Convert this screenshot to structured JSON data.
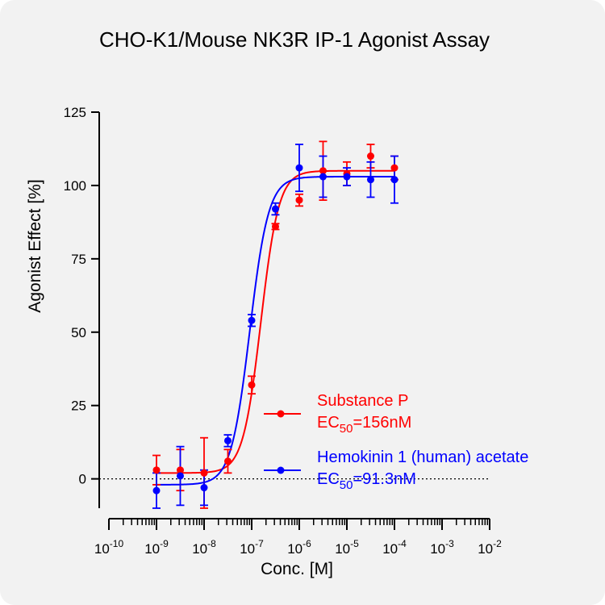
{
  "chart_data": {
    "type": "scatter",
    "title": "CHO-K1/Mouse NK3R IP-1 Agonist Assay",
    "xlabel": "Conc. [M]",
    "ylabel": "Agonist Effect [%]",
    "x_scale": "log10",
    "x_range": [
      1e-10,
      0.01
    ],
    "x_tick_labels": [
      {
        "base": "10",
        "exp": "-10"
      },
      {
        "base": "10",
        "exp": "-9"
      },
      {
        "base": "10",
        "exp": "-8"
      },
      {
        "base": "10",
        "exp": "-7"
      },
      {
        "base": "10",
        "exp": "-6"
      },
      {
        "base": "10",
        "exp": "-5"
      },
      {
        "base": "10",
        "exp": "-4"
      },
      {
        "base": "10",
        "exp": "-3"
      },
      {
        "base": "10",
        "exp": "-2"
      }
    ],
    "y_range": [
      -10,
      125
    ],
    "y_ticks": [
      0,
      25,
      50,
      75,
      100,
      125
    ],
    "zero_line": "dotted",
    "grid": false,
    "legend_position": "lower-right",
    "series": [
      {
        "name": "Substance P",
        "ec50_label": {
          "prefix": "EC",
          "sub": "50",
          "suffix": "=156nM"
        },
        "color": "#ff0000",
        "points": [
          {
            "x": 1e-09,
            "y": 3,
            "err": 5
          },
          {
            "x": 3.16e-09,
            "y": 3,
            "err": 7
          },
          {
            "x": 1e-08,
            "y": 2,
            "err": 12
          },
          {
            "x": 3.16e-08,
            "y": 6,
            "err": 4
          },
          {
            "x": 1e-07,
            "y": 32,
            "err": 3
          },
          {
            "x": 3.16e-07,
            "y": 86,
            "err": 1
          },
          {
            "x": 1e-06,
            "y": 95,
            "err": 2
          },
          {
            "x": 3.16e-06,
            "y": 105,
            "err": 10
          },
          {
            "x": 1e-05,
            "y": 104,
            "err": 4
          },
          {
            "x": 3.16e-05,
            "y": 110,
            "err": 4
          },
          {
            "x": 0.0001,
            "y": 106,
            "err": 4
          }
        ],
        "fit": {
          "bottom": 2,
          "top": 105,
          "ec50": 1.56e-07,
          "hill": 2.3
        }
      },
      {
        "name": "Hemokinin 1 (human) acetate",
        "ec50_label": {
          "prefix": "EC",
          "sub": "50",
          "suffix": "=91.3nM"
        },
        "color": "#0000ff",
        "points": [
          {
            "x": 1e-09,
            "y": -4,
            "err": 6
          },
          {
            "x": 3.16e-09,
            "y": 1,
            "err": 10
          },
          {
            "x": 1e-08,
            "y": -3,
            "err": 6
          },
          {
            "x": 3.16e-08,
            "y": 13,
            "err": 2
          },
          {
            "x": 1e-07,
            "y": 54,
            "err": 2
          },
          {
            "x": 3.16e-07,
            "y": 92,
            "err": 2
          },
          {
            "x": 1e-06,
            "y": 106,
            "err": 8
          },
          {
            "x": 3.16e-06,
            "y": 103,
            "err": 7
          },
          {
            "x": 1e-05,
            "y": 103,
            "err": 3
          },
          {
            "x": 3.16e-05,
            "y": 102,
            "err": 6
          },
          {
            "x": 0.0001,
            "y": 102,
            "err": 8
          }
        ],
        "fit": {
          "bottom": -2,
          "top": 103,
          "ec50": 9.13e-08,
          "hill": 2.2
        }
      }
    ]
  }
}
